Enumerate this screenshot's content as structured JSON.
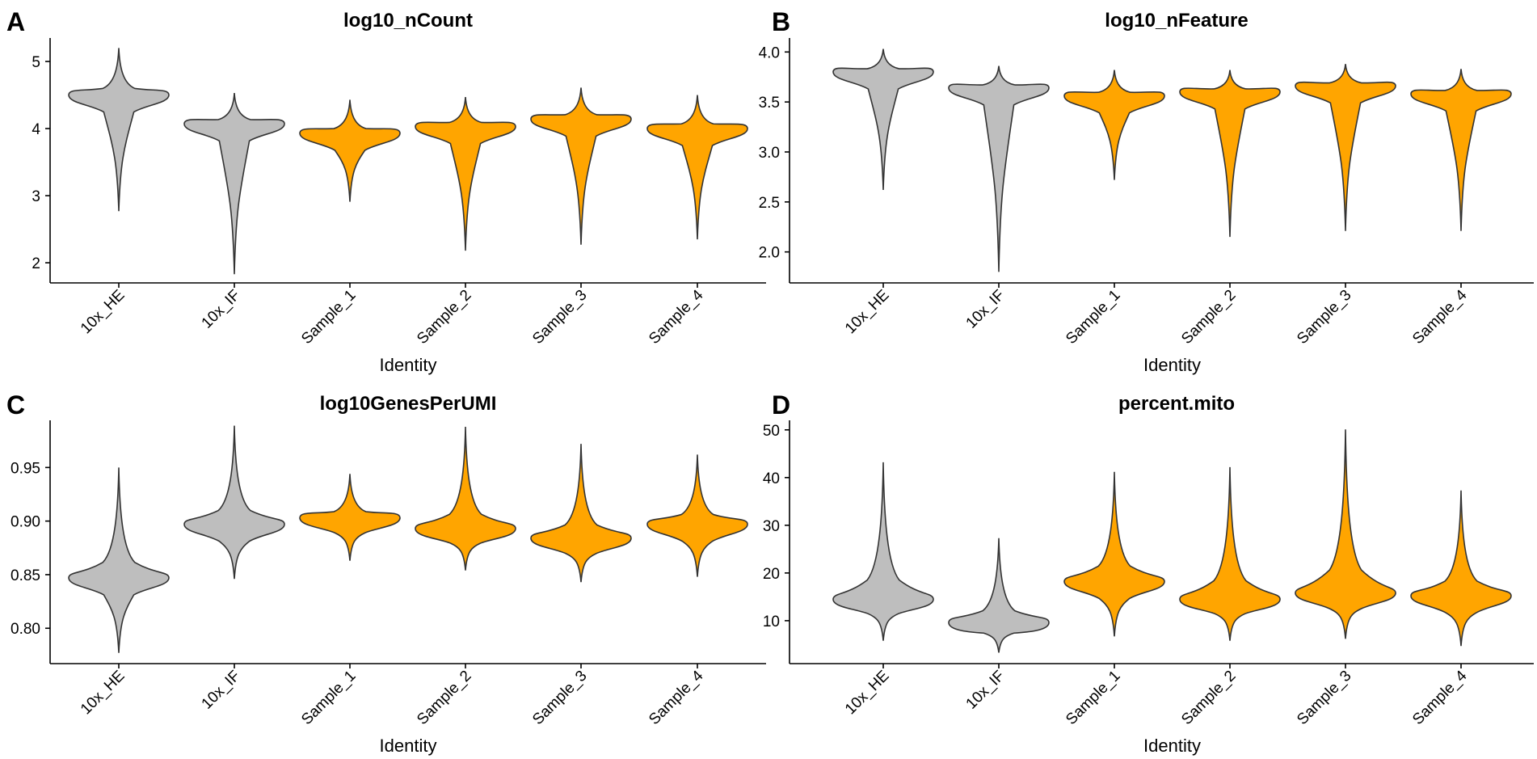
{
  "colors": {
    "reference": "#BEBEBE",
    "sample": "#FFA500",
    "outline": "#333333"
  },
  "chart_data": [
    {
      "type": "violin",
      "panel": "A",
      "title": "log10_nCount",
      "xlabel": "Identity",
      "ylabel": "",
      "ylim": [
        1.7,
        5.35
      ],
      "yticks": [
        "2",
        "3",
        "4",
        "5"
      ],
      "ytick_values": [
        2,
        3,
        4,
        5
      ],
      "categories": [
        "10x_HE",
        "10x_IF",
        "Sample_1",
        "Sample_2",
        "Sample_3",
        "Sample_4"
      ],
      "series": [
        {
          "name": "10x_HE",
          "color": "reference",
          "min": 2.77,
          "max": 5.2,
          "mode": 4.5
        },
        {
          "name": "10x_IF",
          "color": "reference",
          "min": 1.83,
          "max": 4.53,
          "mode": 4.07
        },
        {
          "name": "Sample_1",
          "color": "sample",
          "min": 2.91,
          "max": 4.43,
          "mode": 3.93
        },
        {
          "name": "Sample_2",
          "color": "sample",
          "min": 2.18,
          "max": 4.47,
          "mode": 4.03
        },
        {
          "name": "Sample_3",
          "color": "sample",
          "min": 2.27,
          "max": 4.61,
          "mode": 4.14
        },
        {
          "name": "Sample_4",
          "color": "sample",
          "min": 2.35,
          "max": 4.5,
          "mode": 4.0
        }
      ]
    },
    {
      "type": "violin",
      "panel": "B",
      "title": "log10_nFeature",
      "xlabel": "Identity",
      "ylabel": "",
      "ylim": [
        1.69,
        4.14
      ],
      "yticks": [
        "2.0",
        "2.5",
        "3.0",
        "3.5",
        "4.0"
      ],
      "ytick_values": [
        2.0,
        2.5,
        3.0,
        3.5,
        4.0
      ],
      "categories": [
        "10x_HE",
        "10x_IF",
        "Sample_1",
        "Sample_2",
        "Sample_3",
        "Sample_4"
      ],
      "series": [
        {
          "name": "10x_HE",
          "color": "reference",
          "min": 2.62,
          "max": 4.03,
          "mode": 3.8
        },
        {
          "name": "10x_IF",
          "color": "reference",
          "min": 1.8,
          "max": 3.86,
          "mode": 3.64
        },
        {
          "name": "Sample_1",
          "color": "sample",
          "min": 2.72,
          "max": 3.82,
          "mode": 3.56
        },
        {
          "name": "Sample_2",
          "color": "sample",
          "min": 2.15,
          "max": 3.82,
          "mode": 3.6
        },
        {
          "name": "Sample_3",
          "color": "sample",
          "min": 2.21,
          "max": 3.88,
          "mode": 3.66
        },
        {
          "name": "Sample_4",
          "color": "sample",
          "min": 2.21,
          "max": 3.83,
          "mode": 3.58
        }
      ]
    },
    {
      "type": "violin",
      "panel": "C",
      "title": "log10GenesPerUMI",
      "xlabel": "Identity",
      "ylabel": "",
      "ylim": [
        0.767,
        0.994
      ],
      "yticks": [
        "0.80",
        "0.85",
        "0.90",
        "0.95"
      ],
      "ytick_values": [
        0.8,
        0.85,
        0.9,
        0.95
      ],
      "categories": [
        "10x_HE",
        "10x_IF",
        "Sample_1",
        "Sample_2",
        "Sample_3",
        "Sample_4"
      ],
      "series": [
        {
          "name": "10x_HE",
          "color": "reference",
          "min": 0.777,
          "max": 0.95,
          "mode": 0.847
        },
        {
          "name": "10x_IF",
          "color": "reference",
          "min": 0.846,
          "max": 0.989,
          "mode": 0.897
        },
        {
          "name": "Sample_1",
          "color": "sample",
          "min": 0.863,
          "max": 0.944,
          "mode": 0.903
        },
        {
          "name": "Sample_2",
          "color": "sample",
          "min": 0.854,
          "max": 0.988,
          "mode": 0.893
        },
        {
          "name": "Sample_3",
          "color": "sample",
          "min": 0.843,
          "max": 0.972,
          "mode": 0.884
        },
        {
          "name": "Sample_4",
          "color": "sample",
          "min": 0.848,
          "max": 0.962,
          "mode": 0.897
        }
      ]
    },
    {
      "type": "violin",
      "panel": "D",
      "title": "percent.mito",
      "xlabel": "Identity",
      "ylabel": "",
      "ylim": [
        1,
        52
      ],
      "yticks": [
        "10",
        "20",
        "30",
        "40",
        "50"
      ],
      "ytick_values": [
        10,
        20,
        30,
        40,
        50
      ],
      "categories": [
        "10x_HE",
        "10x_IF",
        "Sample_1",
        "Sample_2",
        "Sample_3",
        "Sample_4"
      ],
      "series": [
        {
          "name": "10x_HE",
          "color": "reference",
          "min": 5.8,
          "max": 43.2,
          "mode": 14.5
        },
        {
          "name": "10x_IF",
          "color": "reference",
          "min": 3.3,
          "max": 27.3,
          "mode": 9.6
        },
        {
          "name": "Sample_1",
          "color": "sample",
          "min": 6.7,
          "max": 41.2,
          "mode": 18.2
        },
        {
          "name": "Sample_2",
          "color": "sample",
          "min": 5.8,
          "max": 42.2,
          "mode": 14.5
        },
        {
          "name": "Sample_3",
          "color": "sample",
          "min": 6.2,
          "max": 50.1,
          "mode": 15.8
        },
        {
          "name": "Sample_4",
          "color": "sample",
          "min": 4.7,
          "max": 37.3,
          "mode": 15.2
        }
      ]
    }
  ]
}
